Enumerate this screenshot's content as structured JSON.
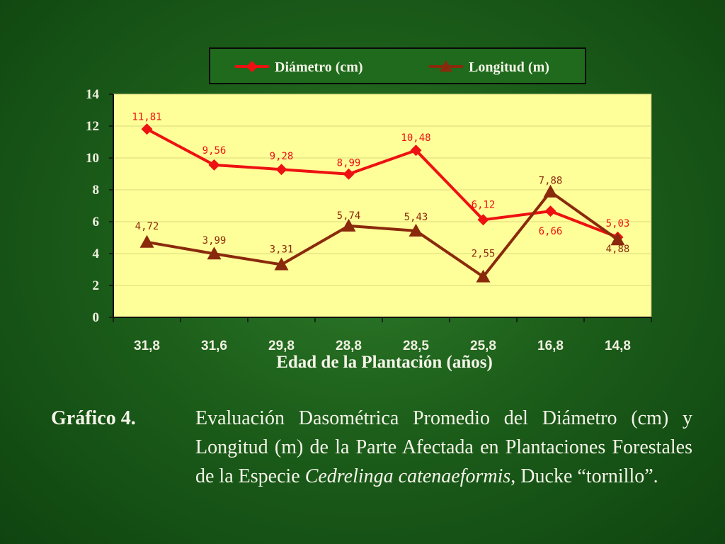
{
  "chart_data": {
    "type": "line",
    "categories": [
      "31,8",
      "31,6",
      "29,8",
      "28,8",
      "28,5",
      "25,8",
      "16,8",
      "14,8"
    ],
    "series": [
      {
        "name": "Diámetro (cm)",
        "values": [
          11.81,
          9.56,
          9.28,
          8.99,
          10.48,
          6.12,
          6.66,
          5.03
        ],
        "labels": [
          "11,81",
          "9,56",
          "9,28",
          "8,99",
          "10,48",
          "6,12",
          "6,66",
          "5,03"
        ],
        "color": "#ee1111",
        "marker": "diamond"
      },
      {
        "name": "Longitud (m)",
        "values": [
          4.72,
          3.99,
          3.31,
          5.74,
          5.43,
          2.55,
          7.88,
          4.88
        ],
        "labels": [
          "4,72",
          "3,99",
          "3,31",
          "5,74",
          "5,43",
          "2,55",
          "7,88",
          "4,88"
        ],
        "color": "#8a2a0c",
        "marker": "triangle"
      }
    ],
    "xlabel": "Edad de la Plantación (años)",
    "ylabel": "",
    "ylim": [
      0,
      14
    ],
    "yticks": [
      0,
      2,
      4,
      6,
      8,
      10,
      12,
      14
    ],
    "grid": true,
    "legend_position": "top",
    "plot_background": "#ffff99"
  },
  "caption": {
    "label": "Gráfico 4.",
    "text_before": "Evaluación Dasométrica Promedio del Diámetro (cm) y Longitud (m) de la Parte Afectada en Plantaciones Forestales de la Especie ",
    "species": "Cedrelinga catenaeformis",
    "text_after": ", Ducke “tornillo”."
  }
}
